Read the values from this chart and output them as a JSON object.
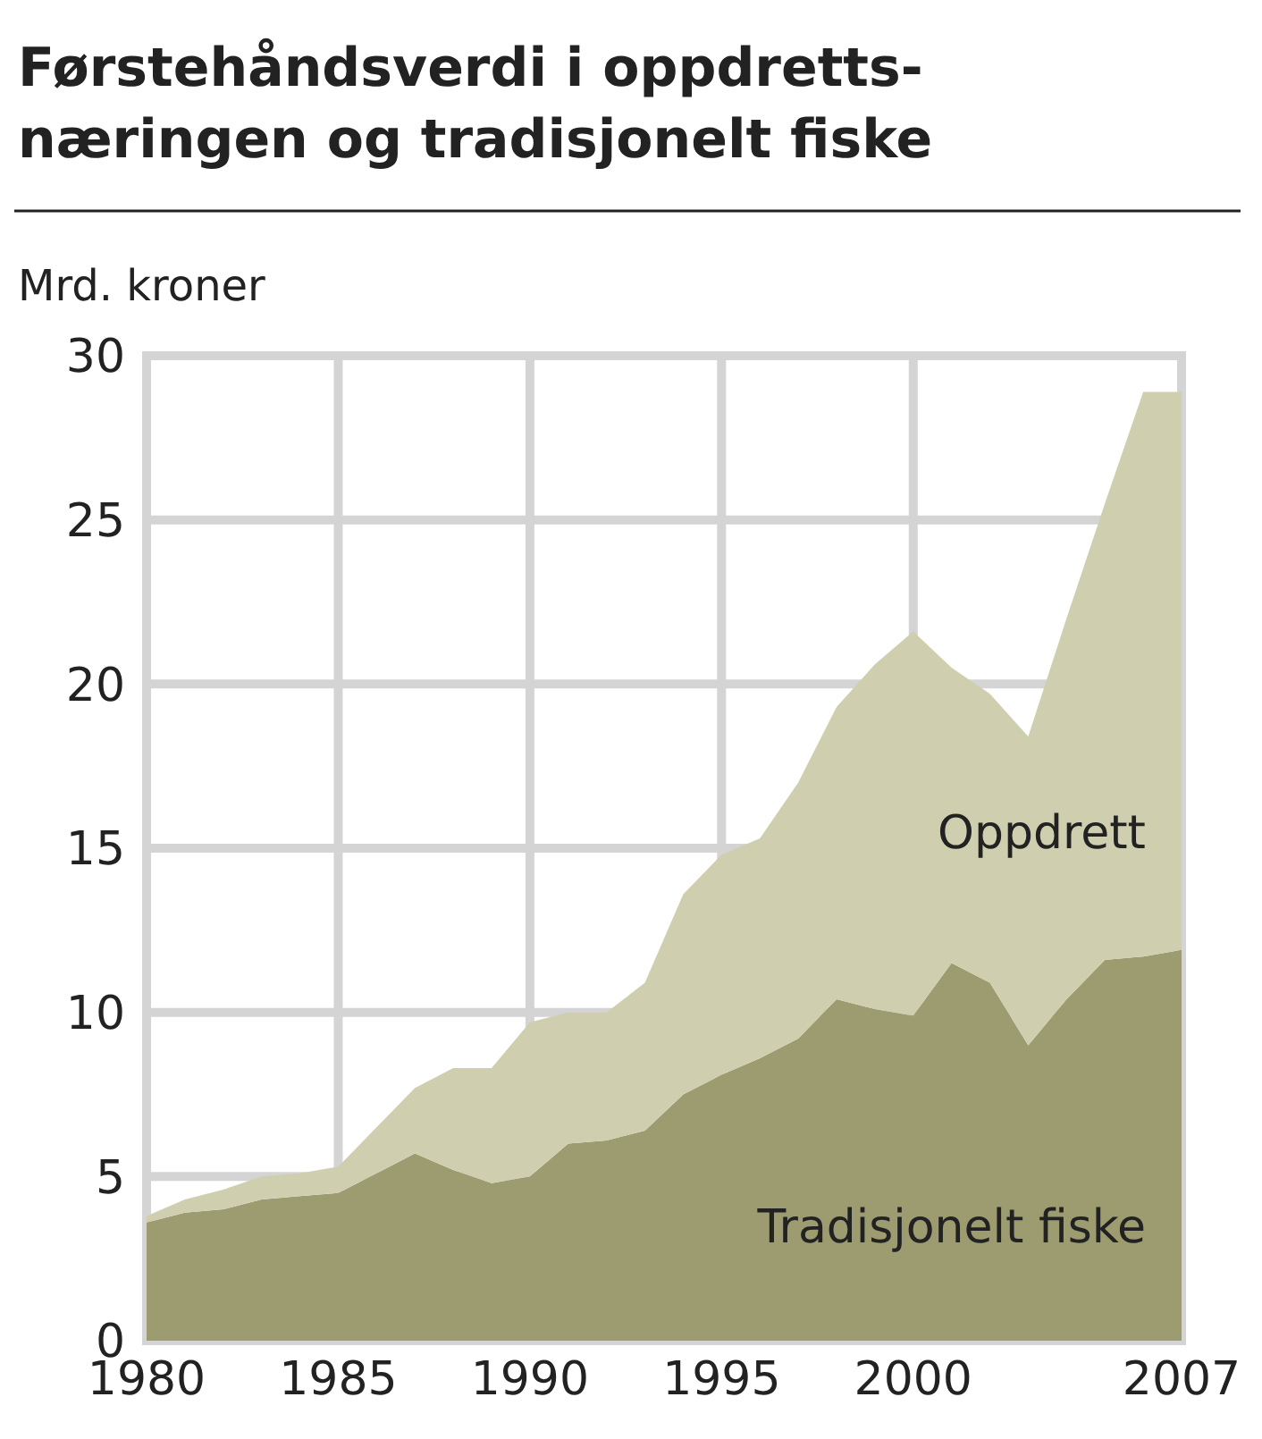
{
  "chart_data": {
    "type": "area",
    "stacked": true,
    "title": "Førstehåndsverdi i oppdretts-\nnæringen og tradisjonelt fiske",
    "ylabel": "Mrd. kroner",
    "x": [
      1980,
      1981,
      1982,
      1983,
      1984,
      1985,
      1986,
      1987,
      1988,
      1989,
      1990,
      1991,
      1992,
      1993,
      1994,
      1995,
      1996,
      1997,
      1998,
      1999,
      2000,
      2001,
      2002,
      2003,
      2004,
      2005,
      2006,
      2007
    ],
    "series": [
      {
        "name": "Tradisjonelt fiske",
        "color": "#9c9c70",
        "values": [
          3.6,
          3.9,
          4.0,
          4.3,
          4.4,
          4.5,
          5.1,
          5.7,
          5.2,
          4.8,
          5.0,
          6.0,
          6.1,
          6.4,
          7.5,
          8.1,
          8.6,
          9.2,
          10.4,
          10.1,
          9.9,
          11.5,
          10.9,
          9.0,
          10.4,
          11.6,
          11.7,
          11.9
        ]
      },
      {
        "name": "Oppdrett",
        "color": "#cfcfb0",
        "values": [
          0.2,
          0.4,
          0.6,
          0.7,
          0.7,
          0.8,
          1.4,
          2.0,
          3.1,
          3.5,
          4.7,
          4.0,
          3.9,
          4.5,
          6.1,
          6.7,
          6.7,
          7.8,
          8.9,
          10.5,
          11.7,
          9.0,
          8.8,
          9.4,
          11.6,
          13.9,
          17.2,
          17.0
        ]
      }
    ],
    "xlim": [
      1980,
      2007
    ],
    "xticks": [
      1980,
      1985,
      1990,
      1995,
      2000,
      2007
    ],
    "ylim": [
      0,
      30
    ],
    "yticks": [
      0,
      5,
      10,
      15,
      20,
      25,
      30
    ],
    "grid": true
  }
}
